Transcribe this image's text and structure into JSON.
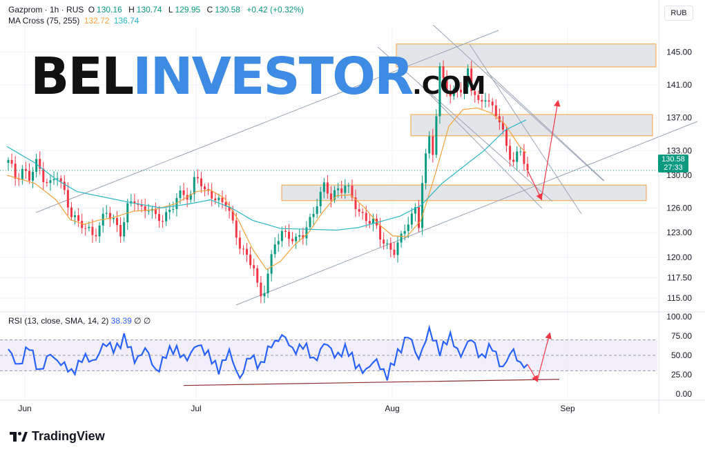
{
  "header": {
    "symbol": "Gazprom · 1h · RUS",
    "o_label": "O",
    "o": "130.16",
    "h_label": "H",
    "h": "130.74",
    "l_label": "L",
    "l": "129.95",
    "c_label": "C",
    "c": "130.58",
    "change": "+0.42 (+0.32%)",
    "indicator": "MA Cross (75, 255)",
    "ma_fast": "132.72",
    "ma_slow": "136.74"
  },
  "currency": "RUB",
  "last_price": {
    "price": "130.58",
    "countdown": "27:33"
  },
  "rsi_header": {
    "label": "RSI (13, close, SMA, 14, 2)",
    "value": "38.39",
    "icons": "∅ ∅"
  },
  "watermark": {
    "part1": "BEL",
    "part2": "INVESTOR",
    "part3": ".COM"
  },
  "branding": "TradingView",
  "colors": {
    "up": "#089981",
    "down": "#f23645",
    "ma_fast": "#f7a23c",
    "ma_slow": "#2bb6c6",
    "rsi": "#2962ff",
    "trend": "#9aa4b6",
    "arrow": "#f23645",
    "zone_border": "#f7a23c"
  },
  "chart_data": [
    {
      "type": "candlestick",
      "title": "Gazprom · 1h · RUS",
      "price_axis": [
        "145.00",
        "141.00",
        "137.00",
        "133.00",
        "130.00",
        "126.00",
        "123.00",
        "120.00",
        "117.50",
        "115.00"
      ],
      "x_ticks": [
        "Jun",
        "Jul",
        "Aug",
        "Sep"
      ],
      "ylim": [
        113.5,
        148.0
      ],
      "close_path": [
        [
          0,
          131.5
        ],
        [
          2,
          129.8
        ],
        [
          4,
          130.8
        ],
        [
          6,
          129.5
        ],
        [
          8,
          131.3
        ],
        [
          10,
          130.0
        ],
        [
          12,
          128.9
        ],
        [
          14,
          129.8
        ],
        [
          16,
          127.8
        ],
        [
          18,
          125.6
        ],
        [
          20,
          123.9
        ],
        [
          22,
          123.5
        ],
        [
          24,
          123.0
        ],
        [
          26,
          123.8
        ],
        [
          28,
          125.3
        ],
        [
          30,
          124.5
        ],
        [
          32,
          123.3
        ],
        [
          34,
          125.8
        ],
        [
          36,
          126.9
        ],
        [
          38,
          126.0
        ],
        [
          40,
          126.2
        ],
        [
          42,
          124.5
        ],
        [
          44,
          124.8
        ],
        [
          46,
          125.9
        ],
        [
          48,
          127.0
        ],
        [
          50,
          127.5
        ],
        [
          52,
          127.8
        ],
        [
          53,
          129.6
        ],
        [
          54,
          130.0
        ],
        [
          56,
          127.5
        ],
        [
          58,
          127.8
        ],
        [
          60,
          127.0
        ],
        [
          62,
          126.5
        ],
        [
          64,
          123.8
        ],
        [
          66,
          121.8
        ],
        [
          68,
          120.0
        ],
        [
          70,
          118.5
        ],
        [
          71,
          116.2
        ],
        [
          72,
          115.3
        ],
        [
          73,
          116.5
        ],
        [
          74,
          118.2
        ],
        [
          76,
          121.5
        ],
        [
          78,
          122.7
        ],
        [
          80,
          123.0
        ],
        [
          82,
          122.0
        ],
        [
          84,
          122.5
        ],
        [
          86,
          124.5
        ],
        [
          88,
          127.0
        ],
        [
          90,
          128.4
        ],
        [
          92,
          127.2
        ],
        [
          94,
          128.5
        ],
        [
          96,
          128.8
        ],
        [
          98,
          127.0
        ],
        [
          100,
          125.5
        ],
        [
          102,
          125.0
        ],
        [
          104,
          124.0
        ],
        [
          106,
          122.5
        ],
        [
          108,
          121.5
        ],
        [
          110,
          120.8
        ],
        [
          112,
          122.0
        ],
        [
          114,
          124.6
        ],
        [
          116,
          126.0
        ],
        [
          117,
          124.0
        ],
        [
          118,
          129.0
        ],
        [
          119,
          131.8
        ],
        [
          120,
          134.5
        ],
        [
          121,
          133.2
        ],
        [
          122,
          137.5
        ],
        [
          123,
          143.0
        ],
        [
          124,
          142.0
        ],
        [
          126,
          139.0
        ],
        [
          128,
          141.0
        ],
        [
          130,
          140.5
        ],
        [
          131,
          142.8
        ],
        [
          132,
          140.5
        ],
        [
          134,
          138.5
        ],
        [
          136,
          140.0
        ],
        [
          138,
          138.0
        ],
        [
          140,
          136.5
        ],
        [
          142,
          133.5
        ],
        [
          144,
          132.0
        ],
        [
          146,
          132.6
        ],
        [
          148,
          130.58
        ]
      ],
      "ma_fast": [
        [
          0,
          130.0
        ],
        [
          8,
          129.0
        ],
        [
          14,
          127.0
        ],
        [
          18,
          124.6
        ],
        [
          22,
          124.0
        ],
        [
          26,
          124.5
        ],
        [
          30,
          124.8
        ],
        [
          36,
          125.6
        ],
        [
          42,
          125.8
        ],
        [
          48,
          126.5
        ],
        [
          54,
          128.0
        ],
        [
          58,
          128.2
        ],
        [
          62,
          127.2
        ],
        [
          66,
          124.5
        ],
        [
          70,
          121.0
        ],
        [
          74,
          118.5
        ],
        [
          78,
          119.5
        ],
        [
          82,
          121.5
        ],
        [
          86,
          123.0
        ],
        [
          90,
          125.5
        ],
        [
          94,
          127.5
        ],
        [
          98,
          127.6
        ],
        [
          102,
          126.0
        ],
        [
          106,
          124.0
        ],
        [
          110,
          122.6
        ],
        [
          114,
          122.5
        ],
        [
          118,
          124.5
        ],
        [
          122,
          130.0
        ],
        [
          126,
          136.0
        ],
        [
          130,
          138.0
        ],
        [
          134,
          138.2
        ],
        [
          138,
          137.6
        ],
        [
          142,
          136.2
        ],
        [
          146,
          133.6
        ],
        [
          148,
          132.72
        ]
      ],
      "ma_slow": [
        [
          0,
          133.5
        ],
        [
          8,
          131.5
        ],
        [
          14,
          129.5
        ],
        [
          20,
          128.0
        ],
        [
          28,
          127.3
        ],
        [
          36,
          126.6
        ],
        [
          44,
          126.0
        ],
        [
          52,
          126.5
        ],
        [
          58,
          127.0
        ],
        [
          64,
          126.0
        ],
        [
          70,
          124.5
        ],
        [
          78,
          123.5
        ],
        [
          86,
          123.4
        ],
        [
          94,
          123.3
        ],
        [
          100,
          123.6
        ],
        [
          106,
          124.3
        ],
        [
          112,
          125.0
        ],
        [
          118,
          126.3
        ],
        [
          124,
          129.0
        ],
        [
          130,
          131.0
        ],
        [
          136,
          133.0
        ],
        [
          142,
          135.5
        ],
        [
          148,
          136.74
        ]
      ],
      "series": [
        {
          "name": "MA Cross (75, 255)",
          "values": [
            "132.72",
            "136.74"
          ]
        }
      ],
      "zones": [
        {
          "top": 146.0,
          "bottom": 143.2
        },
        {
          "top": 137.4,
          "bottom": 134.8
        },
        {
          "top": 128.8,
          "bottom": 126.9
        }
      ],
      "projection": {
        "down_to": 127.1,
        "up_to": 139.0
      }
    },
    {
      "type": "line",
      "title": "RSI (13, close, SMA, 14, 2)",
      "y_ticks": [
        "100.00",
        "75.00",
        "50.00",
        "25.00",
        "0.00"
      ],
      "ylim": [
        0,
        100
      ],
      "bands": [
        70,
        50,
        30
      ],
      "rsi": [
        [
          0,
          55
        ],
        [
          3,
          38
        ],
        [
          6,
          60
        ],
        [
          9,
          30
        ],
        [
          12,
          50
        ],
        [
          15,
          42
        ],
        [
          18,
          25
        ],
        [
          21,
          48
        ],
        [
          24,
          40
        ],
        [
          27,
          64
        ],
        [
          30,
          58
        ],
        [
          33,
          72
        ],
        [
          36,
          45
        ],
        [
          39,
          58
        ],
        [
          42,
          30
        ],
        [
          45,
          50
        ],
        [
          48,
          60
        ],
        [
          51,
          42
        ],
        [
          54,
          68
        ],
        [
          57,
          48
        ],
        [
          60,
          34
        ],
        [
          63,
          52
        ],
        [
          66,
          22
        ],
        [
          69,
          48
        ],
        [
          72,
          38
        ],
        [
          75,
          62
        ],
        [
          78,
          78
        ],
        [
          81,
          55
        ],
        [
          84,
          65
        ],
        [
          87,
          42
        ],
        [
          90,
          66
        ],
        [
          93,
          50
        ],
        [
          96,
          58
        ],
        [
          99,
          40
        ],
        [
          102,
          28
        ],
        [
          105,
          46
        ],
        [
          108,
          20
        ],
        [
          111,
          55
        ],
        [
          114,
          74
        ],
        [
          117,
          48
        ],
        [
          120,
          80
        ],
        [
          123,
          58
        ],
        [
          126,
          72
        ],
        [
          129,
          52
        ],
        [
          132,
          70
        ],
        [
          135,
          48
        ],
        [
          138,
          60
        ],
        [
          141,
          34
        ],
        [
          144,
          56
        ],
        [
          146,
          40
        ],
        [
          148,
          38.39
        ]
      ],
      "divergence_line": [
        [
          0,
          11
        ],
        [
          148,
          19
        ]
      ],
      "projection": {
        "down_to": 17,
        "up_to": 78
      }
    }
  ]
}
